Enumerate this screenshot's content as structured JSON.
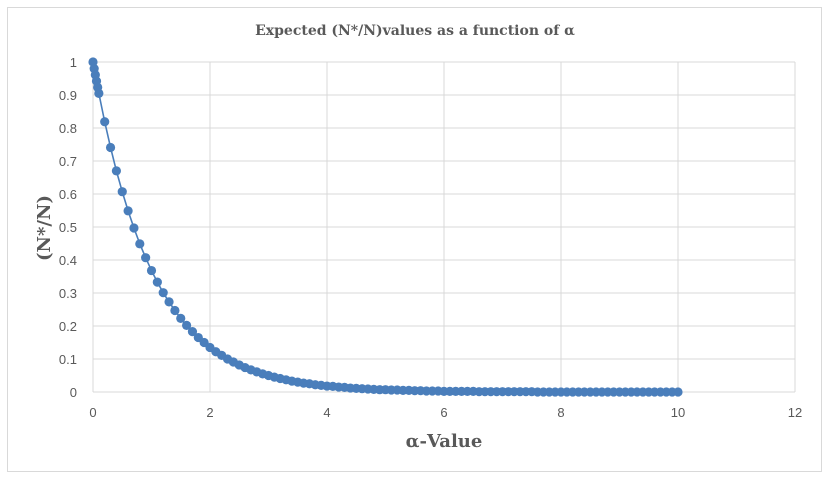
{
  "chart_data": {
    "type": "scatter",
    "title": "Expected  (N*/N)values as a function  of  α",
    "xlabel": "α-Value",
    "ylabel": "(N*/N)",
    "xlim": [
      0,
      12
    ],
    "ylim": [
      0,
      1
    ],
    "x_ticks": [
      "0",
      "2",
      "4",
      "6",
      "8",
      "10",
      "12"
    ],
    "y_ticks": [
      "0",
      "0.1",
      "0.2",
      "0.3",
      "0.4",
      "0.5",
      "0.6",
      "0.7",
      "0.8",
      "0.9",
      "1"
    ],
    "grid": true,
    "legend": "none",
    "series": [
      {
        "color": "#4a7ebb",
        "marker": "circle",
        "line": true,
        "x": [
          0,
          0.02,
          0.04,
          0.06,
          0.08,
          0.1,
          0.2,
          0.3,
          0.4,
          0.5,
          0.6,
          0.7,
          0.8,
          0.9,
          1.0,
          1.1,
          1.2,
          1.3,
          1.4,
          1.5,
          1.6,
          1.7,
          1.8,
          1.9,
          2.0,
          2.1,
          2.2,
          2.3,
          2.4,
          2.5,
          2.6,
          2.7,
          2.8,
          2.9,
          3.0,
          3.1,
          3.2,
          3.3,
          3.4,
          3.5,
          3.6,
          3.7,
          3.8,
          3.9,
          4.0,
          4.1,
          4.2,
          4.3,
          4.4,
          4.5,
          4.6,
          4.7,
          4.8,
          4.9,
          5.0,
          5.1,
          5.2,
          5.3,
          5.4,
          5.5,
          5.6,
          5.7,
          5.8,
          5.9,
          6.0,
          6.1,
          6.2,
          6.3,
          6.4,
          6.5,
          6.6,
          6.7,
          6.8,
          6.9,
          7.0,
          7.1,
          7.2,
          7.3,
          7.4,
          7.5,
          7.6,
          7.7,
          7.8,
          7.9,
          8.0,
          8.1,
          8.2,
          8.3,
          8.4,
          8.5,
          8.6,
          8.7,
          8.8,
          8.9,
          9.0,
          9.1,
          9.2,
          9.3,
          9.4,
          9.5,
          9.6,
          9.7,
          9.8,
          9.9,
          10.0
        ],
        "y": [
          1.0,
          0.98,
          0.961,
          0.942,
          0.923,
          0.905,
          0.819,
          0.741,
          0.67,
          0.607,
          0.549,
          0.497,
          0.449,
          0.407,
          0.368,
          0.333,
          0.301,
          0.273,
          0.247,
          0.223,
          0.202,
          0.183,
          0.165,
          0.15,
          0.135,
          0.122,
          0.111,
          0.1,
          0.091,
          0.082,
          0.074,
          0.067,
          0.061,
          0.055,
          0.05,
          0.045,
          0.041,
          0.037,
          0.033,
          0.03,
          0.027,
          0.025,
          0.022,
          0.02,
          0.018,
          0.017,
          0.015,
          0.014,
          0.012,
          0.011,
          0.01,
          0.009,
          0.008,
          0.007,
          0.007,
          0.006,
          0.006,
          0.005,
          0.005,
          0.004,
          0.004,
          0.003,
          0.003,
          0.003,
          0.002,
          0.002,
          0.002,
          0.002,
          0.002,
          0.002,
          0.001,
          0.001,
          0.001,
          0.001,
          0.001,
          0.001,
          0.001,
          0.001,
          0.001,
          0.001,
          0.0,
          0.0,
          0.0,
          0.0,
          0.0,
          0.0,
          0.0,
          0.0,
          0.0,
          0.0,
          0.0,
          0.0,
          0.0,
          0.0,
          0.0,
          0.0,
          0.0,
          0.0,
          0.0,
          0.0,
          0.0,
          0.0,
          0.0,
          0.0,
          0.0
        ]
      }
    ]
  }
}
